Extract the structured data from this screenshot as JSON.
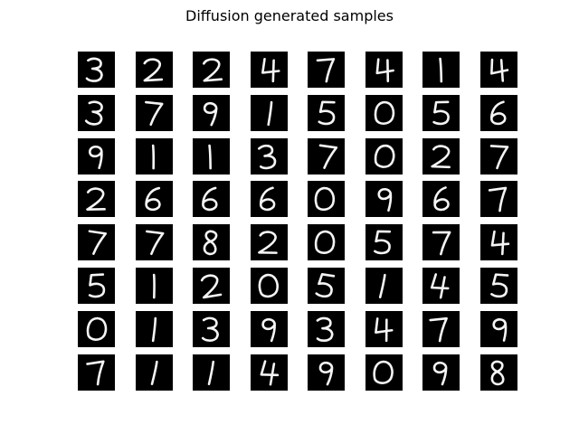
{
  "figure": {
    "title": "Diffusion generated samples",
    "background_color": "#ffffff",
    "tile_color": "#000000",
    "stroke_color": "#f4f4f4"
  },
  "samples": [
    [
      "3",
      "2",
      "2",
      "4",
      "7",
      "4",
      "1",
      "4"
    ],
    [
      "3",
      "7",
      "9",
      "1",
      "5",
      "0",
      "5",
      "6"
    ],
    [
      "9",
      "1",
      "1",
      "3",
      "7",
      "0",
      "2",
      "7"
    ],
    [
      "2",
      "6",
      "6",
      "6",
      "0",
      "9",
      "6",
      "7"
    ],
    [
      "7",
      "7",
      "8",
      "2",
      "0",
      "5",
      "7",
      "4"
    ],
    [
      "5",
      "1",
      "2",
      "0",
      "5",
      "1",
      "4",
      "5"
    ],
    [
      "0",
      "1",
      "3",
      "9",
      "3",
      "4",
      "7",
      "9"
    ],
    [
      "7",
      "1",
      "1",
      "4",
      "9",
      "0",
      "9",
      "8"
    ]
  ]
}
